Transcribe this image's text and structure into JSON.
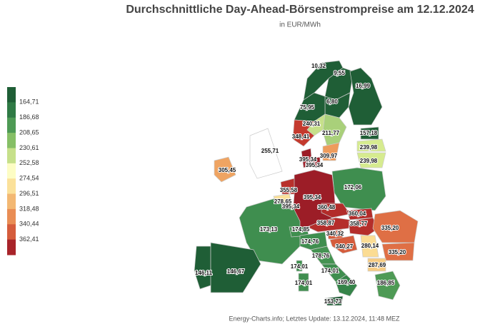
{
  "title": "Durchschnittliche Day-Ahead-Börsenstrompreise am 12.12.2024",
  "subtitle": "in EUR/MWh",
  "legend": {
    "colors": [
      "#1f5e36",
      "#2f7a45",
      "#4e9a55",
      "#86bf66",
      "#c6e08a",
      "#fdfdc4",
      "#fbe19a",
      "#f3b873",
      "#e98d55",
      "#d55c3c",
      "#a8242a"
    ],
    "labels": [
      "164,71",
      "186,68",
      "208,65",
      "230,61",
      "252,58",
      "274,54",
      "296,51",
      "318,48",
      "340,44",
      "362,41"
    ]
  },
  "regions": [
    {
      "label": "10,32",
      "color": "#1f5e36"
    },
    {
      "label": "9,55",
      "color": "#1f5e36"
    },
    {
      "label": "16,99",
      "color": "#1f5e36"
    },
    {
      "label": "6,80",
      "color": "#1f5e36"
    },
    {
      "label": "75,95",
      "color": "#1f5e36"
    },
    {
      "label": "240,31",
      "color": "#c6e08a"
    },
    {
      "label": "211,77",
      "color": "#a9d07a"
    },
    {
      "label": "348,41",
      "color": "#c43a2e"
    },
    {
      "label": "157,18",
      "color": "#1f5e36"
    },
    {
      "label": "239,98",
      "color": "#d6eb8f"
    },
    {
      "label": "239,98",
      "color": "#d6eb8f"
    },
    {
      "label": "255,71",
      "color": "#ffffff"
    },
    {
      "label": "309,97",
      "color": "#ee9c5c"
    },
    {
      "label": "395,34",
      "color": "#9c1d27"
    },
    {
      "label": "395,34",
      "color": "#9c1d27"
    },
    {
      "label": "305,45",
      "color": "#efa462"
    },
    {
      "label": "172,06",
      "color": "#3f8e4f"
    },
    {
      "label": "355,58",
      "color": "#b8302b"
    },
    {
      "label": "278,65",
      "color": "#fbe19a"
    },
    {
      "label": "395,34",
      "color": "#9c1d27"
    },
    {
      "label": "395,34",
      "color": "#9c1d27"
    },
    {
      "label": "360,48",
      "color": "#b22c2a"
    },
    {
      "label": "360,04",
      "color": "#b22c2a"
    },
    {
      "label": "358,87",
      "color": "#b52e2b"
    },
    {
      "label": "358,77",
      "color": "#b52e2b"
    },
    {
      "label": "335,20",
      "color": "#df6f45"
    },
    {
      "label": "173,13",
      "color": "#3f8e4f"
    },
    {
      "label": "174,85",
      "color": "#3f8e4f"
    },
    {
      "label": "340,32",
      "color": "#d55c3c"
    },
    {
      "label": "174,76",
      "color": "#3f8e4f"
    },
    {
      "label": "340,27",
      "color": "#d55c3c"
    },
    {
      "label": "280,14",
      "color": "#fbdc93"
    },
    {
      "label": "335,20",
      "color": "#df6f45"
    },
    {
      "label": "178,76",
      "color": "#459352"
    },
    {
      "label": "287,69",
      "color": "#f6cb82"
    },
    {
      "label": "146,11",
      "color": "#1f5e36"
    },
    {
      "label": "146,67",
      "color": "#1f5e36"
    },
    {
      "label": "174,01",
      "color": "#3f8e4f"
    },
    {
      "label": "174,01",
      "color": "#3f8e4f"
    },
    {
      "label": "169,40",
      "color": "#358449"
    },
    {
      "label": "186,85",
      "color": "#4e9a55"
    },
    {
      "label": "174,01",
      "color": "#3f8e4f"
    },
    {
      "label": "153,73",
      "color": "#1f5e36"
    }
  ],
  "footer": "Energy-Charts.info; Letztes Update: 13.12.2024, 11:48 MEZ"
}
